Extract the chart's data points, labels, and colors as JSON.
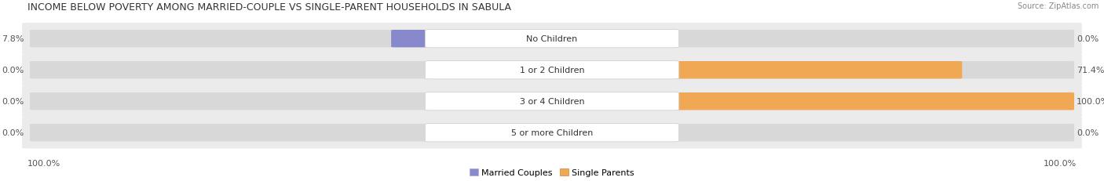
{
  "title": "INCOME BELOW POVERTY AMONG MARRIED-COUPLE VS SINGLE-PARENT HOUSEHOLDS IN SABULA",
  "source": "Source: ZipAtlas.com",
  "categories": [
    "No Children",
    "1 or 2 Children",
    "3 or 4 Children",
    "5 or more Children"
  ],
  "married_values": [
    7.8,
    0.0,
    0.0,
    0.0
  ],
  "single_values": [
    0.0,
    71.4,
    100.0,
    0.0
  ],
  "married_color": "#8888cc",
  "single_color": "#f0a855",
  "single_color_light": "#f5cc99",
  "row_bg_color": "#ebebeb",
  "bar_track_color": "#d8d8d8",
  "title_fontsize": 9,
  "source_fontsize": 7,
  "label_fontsize": 8,
  "category_fontsize": 8,
  "legend_fontsize": 8,
  "max_value": 100.0,
  "axis_label_left": "100.0%",
  "axis_label_right": "100.0%"
}
